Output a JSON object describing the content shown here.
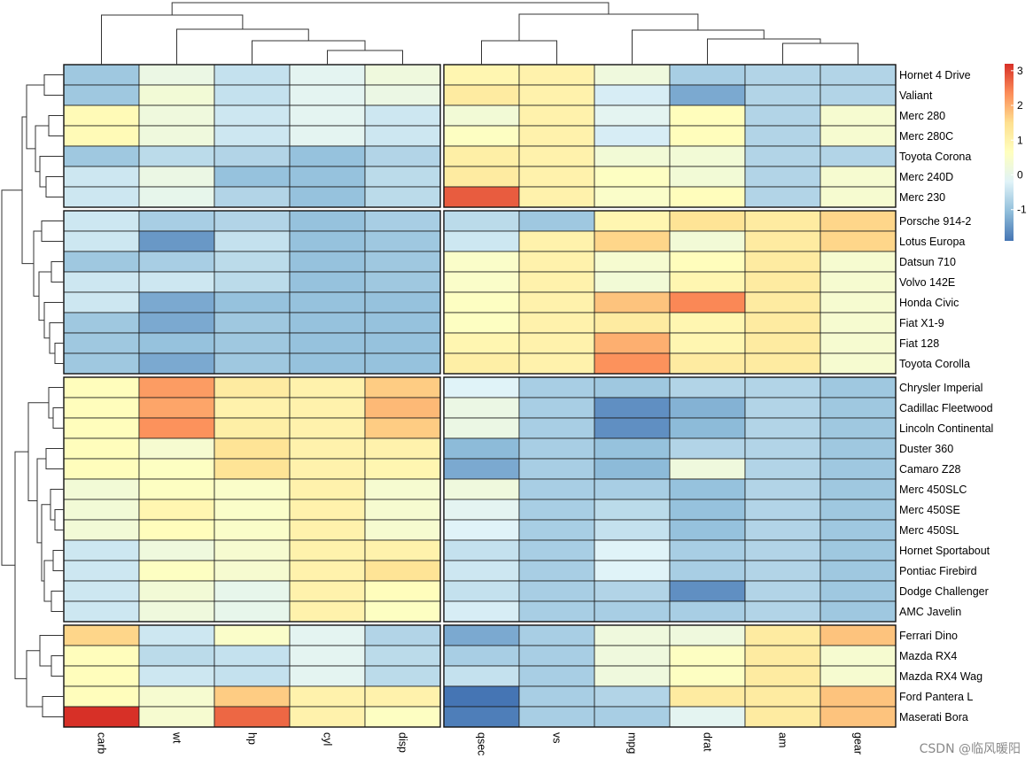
{
  "chart_data": {
    "type": "heatmap",
    "title": "",
    "columns": [
      "carb",
      "wt",
      "hp",
      "cyl",
      "disp",
      "qsec",
      "vs",
      "mpg",
      "drat",
      "am",
      "gear"
    ],
    "column_groups": [
      [
        "carb",
        "wt",
        "hp",
        "cyl",
        "disp"
      ],
      [
        "qsec",
        "vs",
        "mpg",
        "drat",
        "am",
        "gear"
      ]
    ],
    "row_groups": [
      {
        "rows": [
          "Hornet 4 Drive",
          "Valiant",
          "Merc 280",
          "Merc 280C",
          "Toyota Corona",
          "Merc 240D",
          "Merc 230"
        ],
        "values": [
          [
            -0.9,
            0.1,
            -0.5,
            -0.1,
            0.2,
            0.9,
            1.0,
            0.2,
            -0.8,
            -0.7,
            -0.7
          ],
          [
            -0.9,
            0.3,
            -0.5,
            -0.1,
            0.1,
            1.2,
            1.0,
            -0.3,
            -1.3,
            -0.7,
            -0.7
          ],
          [
            0.8,
            0.2,
            -0.4,
            -0.1,
            -0.4,
            0.3,
            1.0,
            -0.1,
            0.7,
            -0.7,
            0.4
          ],
          [
            0.8,
            0.2,
            -0.4,
            -0.1,
            -0.4,
            0.6,
            1.0,
            -0.3,
            0.7,
            -0.7,
            0.4
          ],
          [
            -0.9,
            -0.6,
            -0.7,
            -1.0,
            -0.7,
            1.1,
            1.0,
            0.3,
            0.3,
            -0.7,
            -0.7
          ],
          [
            -0.4,
            0.1,
            -1.0,
            -1.0,
            -0.6,
            1.2,
            1.0,
            0.6,
            0.3,
            -0.7,
            0.4
          ],
          [
            -0.4,
            0.0,
            -0.7,
            -1.0,
            -0.6,
            2.8,
            1.0,
            0.5,
            0.7,
            -0.7,
            0.4
          ]
        ]
      },
      {
        "rows": [
          "Porsche 914-2",
          "Lotus Europa",
          "Datsun 710",
          "Volvo 142E",
          "Honda Civic",
          "Fiat X1-9",
          "Fiat 128",
          "Toyota Corolla"
        ],
        "values": [
          [
            -0.4,
            -0.8,
            -0.7,
            -1.0,
            -0.8,
            -0.6,
            -0.9,
            0.9,
            1.4,
            1.2,
            1.6
          ],
          [
            -0.4,
            -1.5,
            -0.5,
            -1.0,
            -0.9,
            -0.4,
            1.0,
            1.6,
            0.3,
            1.2,
            1.6
          ],
          [
            -0.9,
            -0.8,
            -0.6,
            -1.0,
            -0.9,
            0.5,
            1.0,
            0.4,
            0.7,
            1.2,
            0.4
          ],
          [
            -0.4,
            -0.4,
            -0.6,
            -1.0,
            -0.9,
            0.5,
            1.0,
            0.3,
            0.9,
            1.2,
            0.4
          ],
          [
            -0.4,
            -1.3,
            -1.0,
            -1.0,
            -1.0,
            0.6,
            1.0,
            1.8,
            2.4,
            1.2,
            0.4
          ],
          [
            -0.9,
            -1.3,
            -0.9,
            -1.0,
            -1.0,
            0.6,
            1.0,
            1.2,
            0.9,
            1.2,
            0.4
          ],
          [
            -0.9,
            -1.0,
            -0.9,
            -1.0,
            -1.0,
            0.9,
            1.0,
            2.0,
            0.9,
            1.2,
            0.4
          ],
          [
            -0.9,
            -1.3,
            -0.9,
            -1.0,
            -1.0,
            1.1,
            1.0,
            2.3,
            1.2,
            1.2,
            0.4
          ]
        ]
      },
      {
        "rows": [
          "Chrysler Imperial",
          "Cadillac Fleetwood",
          "Lincoln Continental",
          "Duster 360",
          "Camaro Z28",
          "Merc 450SLC",
          "Merc 450SE",
          "Merc 450SL",
          "Hornet Sportabout",
          "Pontiac Firebird",
          "Dodge Challenger",
          "AMC Javelin"
        ],
        "values": [
          [
            0.7,
            2.2,
            1.2,
            1.0,
            1.7,
            -0.2,
            -0.8,
            -0.9,
            -0.7,
            -0.7,
            -0.9
          ],
          [
            0.7,
            2.1,
            1.0,
            1.0,
            1.9,
            0.1,
            -0.8,
            -1.6,
            -1.2,
            -0.7,
            -0.9
          ],
          [
            0.7,
            2.3,
            1.1,
            1.0,
            1.7,
            0.1,
            -0.8,
            -1.6,
            -1.1,
            -0.7,
            -0.9
          ],
          [
            0.7,
            0.4,
            1.4,
            1.0,
            1.0,
            -1.1,
            -0.8,
            -1.0,
            -0.7,
            -0.7,
            -0.9
          ],
          [
            0.7,
            0.6,
            1.4,
            1.0,
            0.9,
            -1.3,
            -0.8,
            -1.1,
            0.2,
            -0.7,
            -0.9
          ],
          [
            0.3,
            0.6,
            0.5,
            1.0,
            0.4,
            0.2,
            -0.8,
            -0.8,
            -1.0,
            -0.7,
            -0.9
          ],
          [
            0.3,
            0.9,
            0.5,
            1.0,
            0.4,
            -0.1,
            -0.8,
            -0.6,
            -1.0,
            -0.7,
            -0.9
          ],
          [
            0.3,
            0.7,
            0.5,
            1.0,
            0.4,
            -0.2,
            -0.8,
            -0.5,
            -1.0,
            -0.7,
            -0.9
          ],
          [
            -0.4,
            0.2,
            0.4,
            1.0,
            1.0,
            -0.5,
            -0.8,
            -0.2,
            -0.8,
            -0.7,
            -0.9
          ],
          [
            -0.4,
            0.6,
            0.4,
            1.0,
            1.4,
            -0.4,
            -0.8,
            -0.2,
            -0.8,
            -0.7,
            -0.9
          ],
          [
            -0.4,
            0.3,
            0.0,
            1.0,
            0.7,
            -0.5,
            -0.8,
            -0.7,
            -1.6,
            -0.7,
            -0.9
          ],
          [
            -0.4,
            0.2,
            0.0,
            1.0,
            0.6,
            -0.3,
            -0.8,
            -0.8,
            -0.8,
            -0.7,
            -0.9
          ]
        ]
      },
      {
        "rows": [
          "Ferrari Dino",
          "Mazda RX4",
          "Mazda RX4 Wag",
          "Ford Pantera L",
          "Maserati Bora"
        ],
        "values": [
          [
            1.6,
            -0.4,
            0.5,
            -0.1,
            -0.7,
            -1.3,
            -0.8,
            0.2,
            0.2,
            1.2,
            1.8
          ],
          [
            0.7,
            -0.6,
            -0.5,
            -0.1,
            -0.6,
            -0.8,
            -0.8,
            0.2,
            0.6,
            1.2,
            0.4
          ],
          [
            0.7,
            -0.4,
            -0.5,
            -0.1,
            -0.6,
            -0.5,
            -0.8,
            0.2,
            0.6,
            1.2,
            0.4
          ],
          [
            0.7,
            0.4,
            1.7,
            1.0,
            1.0,
            -1.9,
            -0.8,
            -0.7,
            1.2,
            1.2,
            1.8
          ],
          [
            3.2,
            0.4,
            2.7,
            1.0,
            0.6,
            -1.8,
            -0.8,
            -0.8,
            -0.1,
            1.2,
            1.8
          ]
        ]
      }
    ],
    "legend": {
      "ticks": [
        3,
        2,
        1,
        0,
        -1
      ],
      "tick_labels": [
        "3",
        "2",
        "1",
        "0",
        "-1"
      ],
      "range": [
        -1.9,
        3.2
      ],
      "placement": "right"
    },
    "colors": [
      "#4575B4",
      "#91BFDB",
      "#E0F3F8",
      "#FFFFBF",
      "#FEE090",
      "#FC8D59",
      "#D73027"
    ]
  },
  "watermark": "CSDN @临风暖阳"
}
